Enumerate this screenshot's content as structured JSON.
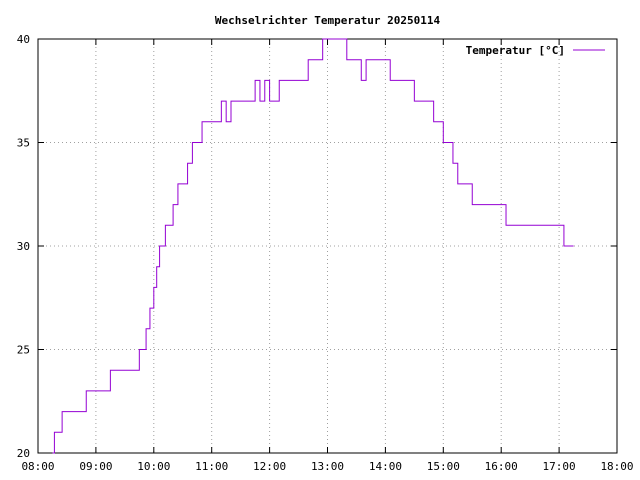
{
  "chart_data": {
    "type": "line",
    "title": "Wechselrichter Temperatur 20250114",
    "xlabel": "",
    "ylabel": "",
    "xlim": [
      "08:00",
      "18:00"
    ],
    "ylim": [
      20,
      40
    ],
    "x_ticks": [
      "08:00",
      "09:00",
      "10:00",
      "11:00",
      "12:00",
      "13:00",
      "14:00",
      "15:00",
      "16:00",
      "17:00",
      "18:00"
    ],
    "y_ticks": [
      "20",
      "25",
      "30",
      "35",
      "40"
    ],
    "grid": true,
    "legend_position": "top-right",
    "series": [
      {
        "name": "Temperatur [°C]",
        "color": "#9400d3",
        "step": true,
        "x": [
          "08:15",
          "08:17",
          "08:25",
          "08:35",
          "08:50",
          "09:00",
          "09:15",
          "09:20",
          "09:25",
          "09:45",
          "09:48",
          "09:52",
          "09:56",
          "10:00",
          "10:03",
          "10:06",
          "10:12",
          "10:20",
          "10:25",
          "10:35",
          "10:40",
          "10:45",
          "10:50",
          "11:00",
          "11:10",
          "11:15",
          "11:20",
          "11:25",
          "11:30",
          "11:35",
          "11:40",
          "11:45",
          "11:50",
          "11:55",
          "12:00",
          "12:05",
          "12:10",
          "12:15",
          "12:20",
          "12:30",
          "12:40",
          "12:50",
          "12:55",
          "13:00",
          "13:03",
          "13:10",
          "13:20",
          "13:25",
          "13:35",
          "13:40",
          "13:45",
          "14:05",
          "14:10",
          "14:20",
          "14:30",
          "14:40",
          "14:50",
          "15:00",
          "15:05",
          "15:10",
          "15:15",
          "15:20",
          "15:30",
          "15:40",
          "15:55",
          "16:00",
          "16:05",
          "16:15",
          "16:20",
          "16:40",
          "16:50",
          "17:00",
          "17:05",
          "17:10",
          "17:15"
        ],
        "values": [
          20,
          21,
          22,
          22,
          23,
          23,
          24,
          24,
          24,
          25,
          25,
          26,
          27,
          28,
          29,
          30,
          31,
          32,
          33,
          34,
          35,
          35,
          36,
          36,
          37,
          36,
          37,
          37,
          37,
          37,
          37,
          38,
          37,
          38,
          37,
          37,
          38,
          38,
          38,
          38,
          39,
          39,
          40,
          40,
          40,
          40,
          39,
          39,
          38,
          39,
          39,
          38,
          38,
          38,
          37,
          37,
          36,
          35,
          35,
          34,
          33,
          33,
          32,
          32,
          32,
          32,
          31,
          31,
          31,
          31,
          31,
          31,
          30,
          30,
          30
        ]
      }
    ]
  }
}
